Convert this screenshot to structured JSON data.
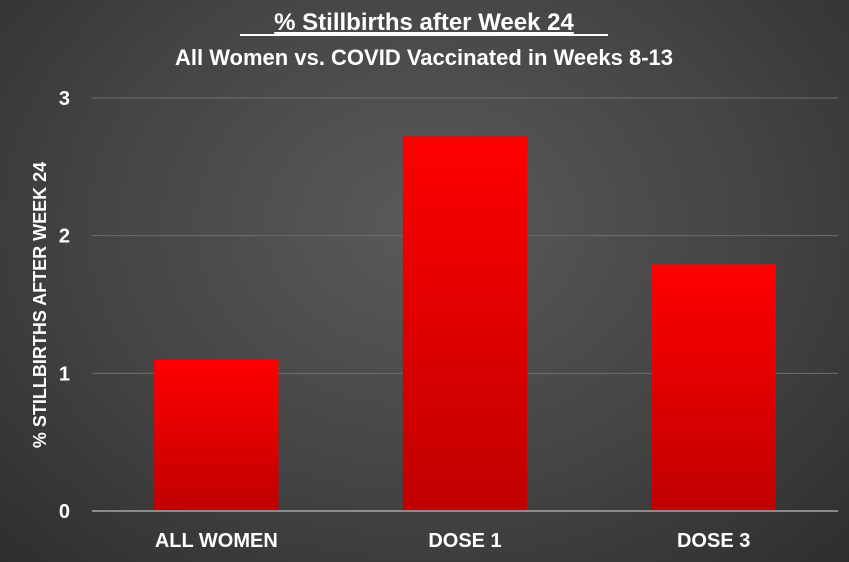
{
  "chart_data": {
    "type": "bar",
    "title": "% Stillbirths after Week 24",
    "subtitle": "All Women vs. COVID Vaccinated in Weeks 8-13",
    "categories": [
      "ALL WOMEN",
      "DOSE 1",
      "DOSE 3"
    ],
    "values": [
      1.1,
      2.72,
      1.79
    ],
    "xlabel": "",
    "ylabel": "% STILLBIRTHS AFTER WEEK 24",
    "ylim": [
      0,
      3
    ],
    "yticks": [
      "0",
      "1",
      "2",
      "3"
    ],
    "grid": true,
    "legend": "none",
    "colors": {
      "bar_top": "#ff0000",
      "bar_bottom": "#c00000",
      "grid": "#6e6e6e",
      "axis": "#a6a6a6"
    }
  }
}
